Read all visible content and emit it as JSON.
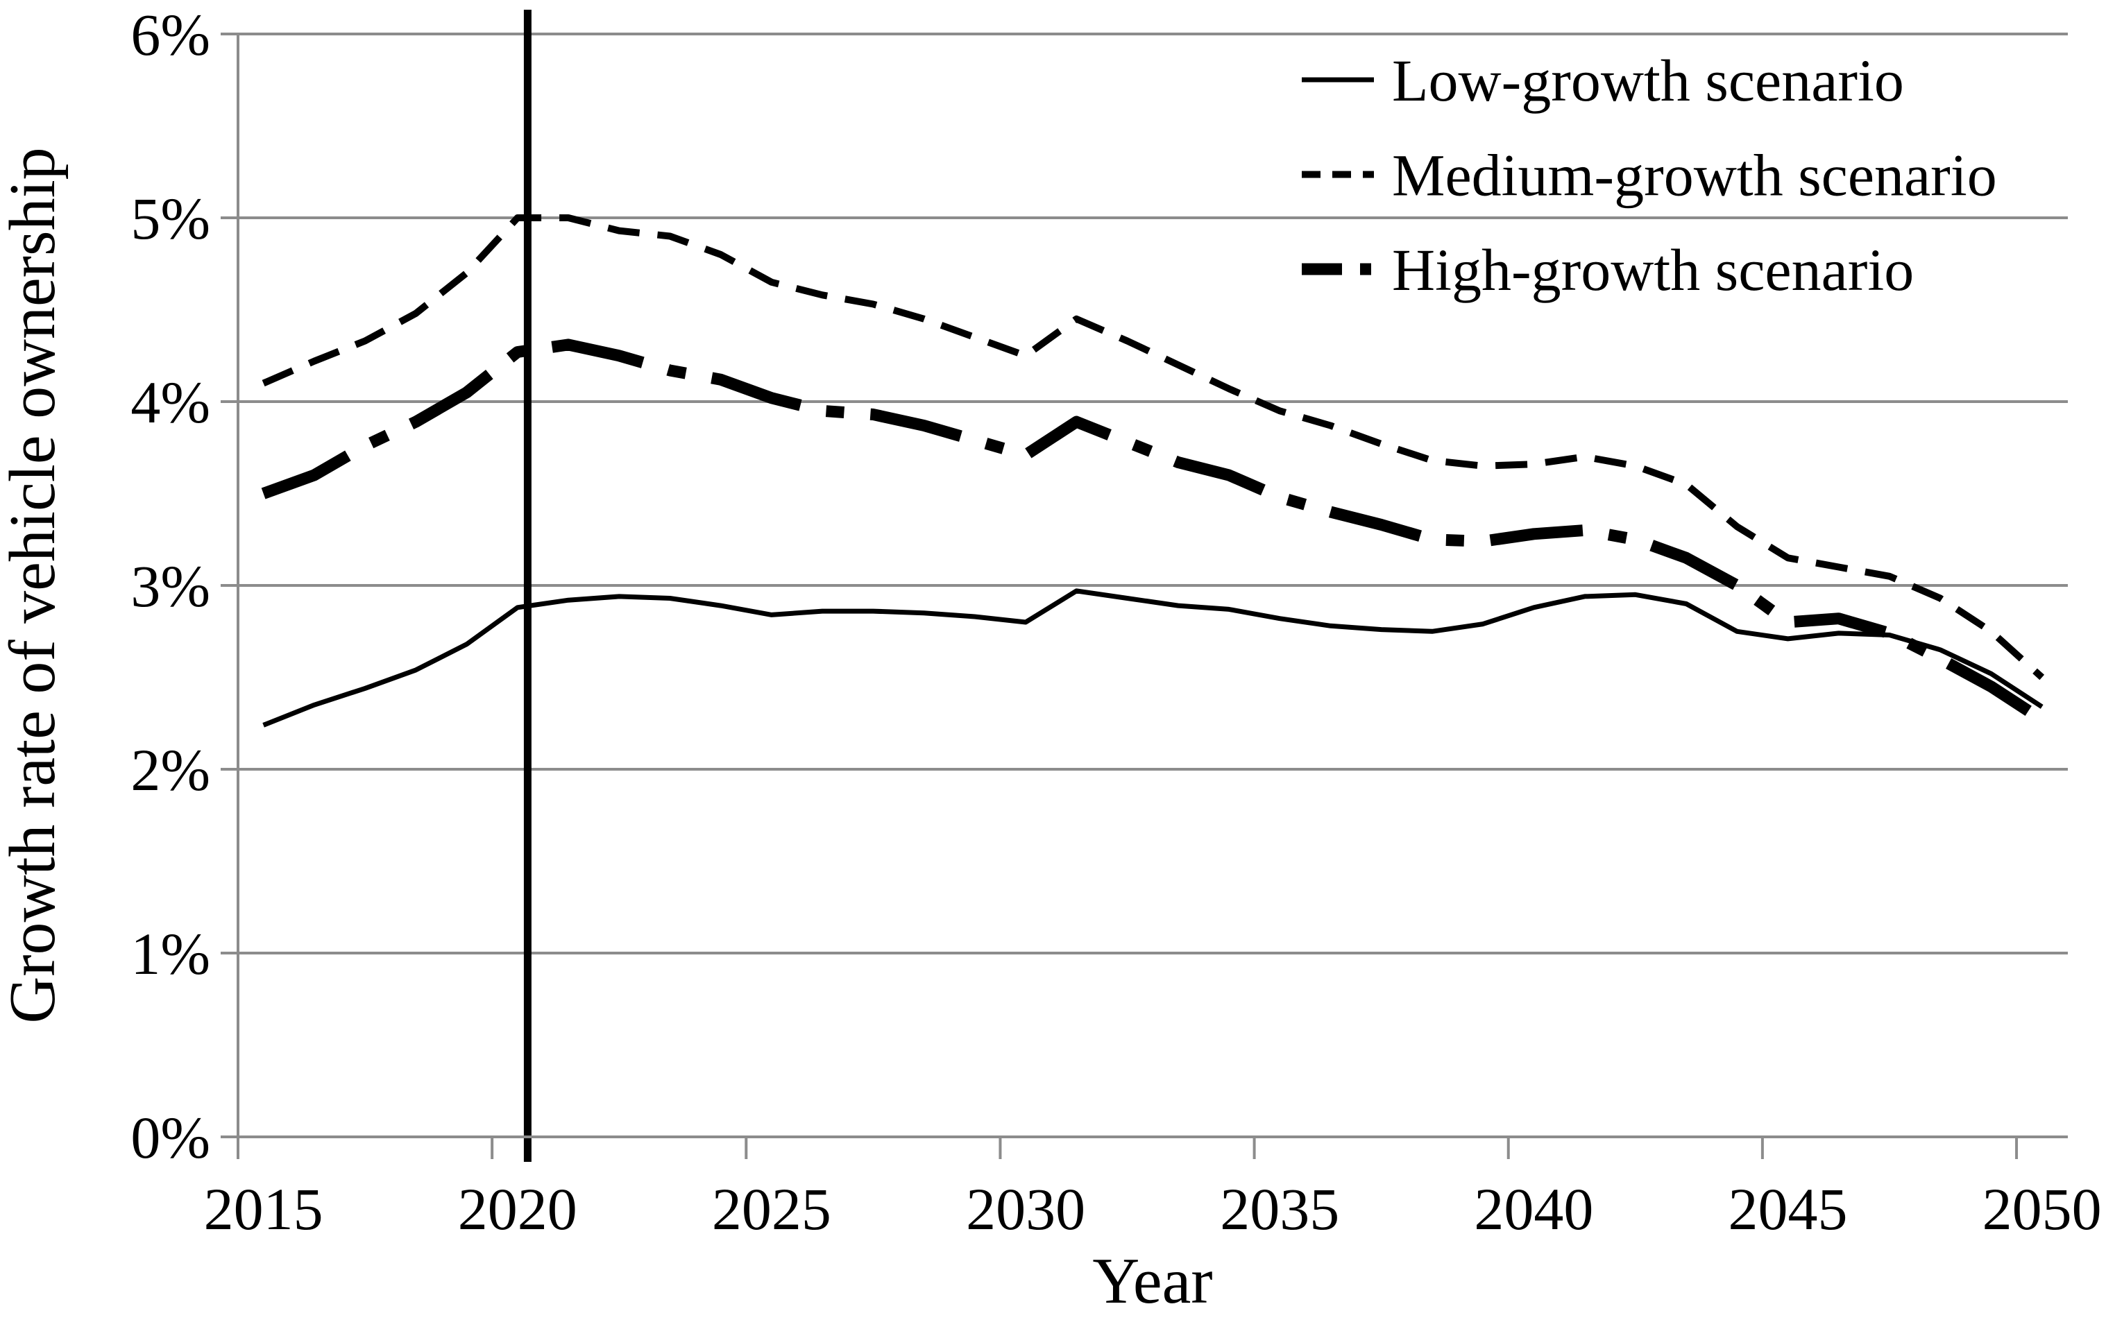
{
  "chart_data": {
    "type": "line",
    "title": "",
    "xlabel": "Year",
    "ylabel": "Growth rate of vehicle ownership",
    "x_tick_labels": [
      "2015",
      "2020",
      "2025",
      "2030",
      "2035",
      "2040",
      "2045",
      "2050"
    ],
    "y_tick_labels": [
      "0%",
      "1%",
      "2%",
      "3%",
      "4%",
      "5%",
      "6%"
    ],
    "ylim": [
      0,
      6
    ],
    "x_start_year": 2015,
    "x_end_year": 2050,
    "grid": "horizontal-gridlines",
    "legend_position": "top-right-inside",
    "vertical_marker_year": 2020.2,
    "x": [
      2015,
      2016,
      2017,
      2018,
      2019,
      2020,
      2021,
      2022,
      2023,
      2024,
      2025,
      2026,
      2027,
      2028,
      2029,
      2030,
      2031,
      2032,
      2033,
      2034,
      2035,
      2036,
      2037,
      2038,
      2039,
      2040,
      2041,
      2042,
      2043,
      2044,
      2045,
      2046,
      2047,
      2048,
      2049,
      2050
    ],
    "series": [
      {
        "name": "Low-growth scenario",
        "style": "solid-thin",
        "values": [
          2.24,
          2.35,
          2.44,
          2.54,
          2.68,
          2.88,
          2.92,
          2.94,
          2.93,
          2.89,
          2.84,
          2.86,
          2.86,
          2.85,
          2.83,
          2.8,
          2.97,
          2.93,
          2.89,
          2.87,
          2.82,
          2.78,
          2.76,
          2.75,
          2.79,
          2.88,
          2.94,
          2.95,
          2.9,
          2.75,
          2.71,
          2.74,
          2.73,
          2.65,
          2.52,
          2.34
        ]
      },
      {
        "name": "Medium-growth scenario",
        "style": "dashed-medium",
        "values": [
          4.1,
          4.22,
          4.33,
          4.48,
          4.7,
          5.0,
          5.0,
          4.93,
          4.9,
          4.8,
          4.65,
          4.58,
          4.53,
          4.45,
          4.35,
          4.25,
          4.45,
          4.33,
          4.2,
          4.07,
          3.95,
          3.87,
          3.77,
          3.68,
          3.65,
          3.66,
          3.7,
          3.65,
          3.55,
          3.32,
          3.15,
          3.1,
          3.05,
          2.93,
          2.75,
          2.5
        ]
      },
      {
        "name": "High-growth scenario",
        "style": "dash-dot-thick",
        "values": [
          3.5,
          3.6,
          3.76,
          3.89,
          4.05,
          4.27,
          4.31,
          4.25,
          4.17,
          4.12,
          4.02,
          3.95,
          3.93,
          3.87,
          3.79,
          3.71,
          3.89,
          3.78,
          3.67,
          3.6,
          3.48,
          3.4,
          3.33,
          3.25,
          3.24,
          3.28,
          3.3,
          3.25,
          3.15,
          3.0,
          2.8,
          2.82,
          2.74,
          2.6,
          2.45,
          2.27
        ]
      }
    ],
    "colors": {
      "series": "#000000",
      "axis": "#8c8c8c",
      "grid": "#8c8c8c",
      "marker_line": "#000000",
      "background": "#ffffff"
    }
  }
}
